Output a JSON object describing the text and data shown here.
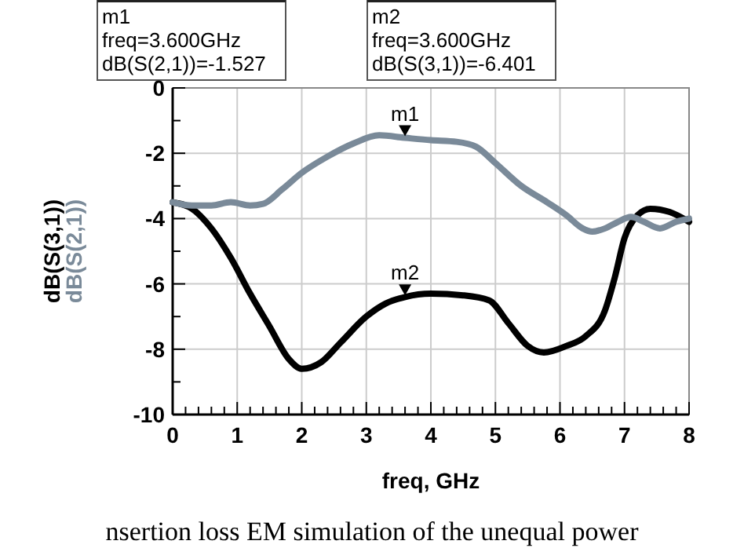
{
  "chart_data": {
    "type": "line",
    "xlabel": "freq, GHz",
    "x": [
      0,
      0.3,
      0.6,
      0.9,
      1.2,
      1.5,
      1.8,
      2.0,
      2.3,
      2.6,
      3.0,
      3.3,
      3.6,
      4.0,
      4.5,
      4.9,
      5.2,
      5.5,
      5.75,
      6.1,
      6.4,
      6.7,
      6.85,
      7.0,
      7.2,
      7.4,
      7.7,
      8.0
    ],
    "series": [
      {
        "name": "dB(S(3,1))",
        "color": "#000000",
        "values": [
          -3.5,
          -3.7,
          -4.3,
          -5.2,
          -6.3,
          -7.3,
          -8.3,
          -8.6,
          -8.4,
          -7.8,
          -7.0,
          -6.6,
          -6.401,
          -6.3,
          -6.35,
          -6.5,
          -7.2,
          -7.9,
          -8.1,
          -7.9,
          -7.6,
          -6.8,
          -5.8,
          -4.6,
          -3.9,
          -3.7,
          -3.8,
          -4.1
        ]
      },
      {
        "name": "dB(S(2,1))",
        "color": "#7a8a99",
        "x": [
          0,
          0.3,
          0.6,
          0.9,
          1.2,
          1.4,
          1.7,
          2.0,
          2.4,
          2.8,
          3.2,
          3.6,
          4.0,
          4.4,
          4.7,
          5.0,
          5.4,
          5.8,
          6.1,
          6.35,
          6.5,
          6.7,
          6.9,
          7.1,
          7.3,
          7.55,
          7.8,
          8.0
        ],
        "values": [
          -3.5,
          -3.6,
          -3.6,
          -3.5,
          -3.6,
          -3.55,
          -3.1,
          -2.6,
          -2.1,
          -1.7,
          -1.45,
          -1.527,
          -1.6,
          -1.65,
          -1.8,
          -2.3,
          -3.0,
          -3.5,
          -3.9,
          -4.3,
          -4.4,
          -4.3,
          -4.1,
          -3.95,
          -4.1,
          -4.3,
          -4.1,
          -4.0
        ]
      }
    ],
    "xlim": [
      0,
      8
    ],
    "xticks": [
      0,
      {
        "value": 0.2,
        "label": null
      },
      {
        "value": 0.4,
        "label": null
      },
      {
        "value": 0.6,
        "label": null
      },
      {
        "value": 0.8,
        "label": null
      },
      1,
      {
        "value": 1.2,
        "label": null
      },
      {
        "value": 1.4,
        "label": null
      },
      {
        "value": 1.6,
        "label": null
      },
      {
        "value": 1.8,
        "label": null
      },
      2,
      {
        "value": 2.2,
        "label": null
      },
      {
        "value": 2.4,
        "label": null
      },
      {
        "value": 2.6,
        "label": null
      },
      {
        "value": 2.8,
        "label": null
      },
      3,
      {
        "value": 3.2,
        "label": null
      },
      {
        "value": 3.4,
        "label": null
      },
      {
        "value": 3.6,
        "label": null
      },
      {
        "value": 3.8,
        "label": null
      },
      4,
      {
        "value": 4.2,
        "label": null
      },
      {
        "value": 4.4,
        "label": null
      },
      {
        "value": 4.6,
        "label": null
      },
      {
        "value": 4.8,
        "label": null
      },
      5,
      {
        "value": 5.2,
        "label": null
      },
      {
        "value": 5.4,
        "label": null
      },
      {
        "value": 5.6,
        "label": null
      },
      {
        "value": 5.8,
        "label": null
      },
      6,
      {
        "value": 6.2,
        "label": null
      },
      {
        "value": 6.4,
        "label": null
      },
      {
        "value": 6.6,
        "label": null
      },
      {
        "value": 6.8,
        "label": null
      },
      7,
      {
        "value": 7.2,
        "label": null
      },
      {
        "value": 7.4,
        "label": null
      },
      {
        "value": 7.6,
        "label": null
      },
      {
        "value": 7.8,
        "label": null
      },
      8
    ],
    "ylim": [
      -10,
      0
    ],
    "yticks": [
      -10,
      {
        "value": -9,
        "label": null
      },
      -8,
      {
        "value": -7,
        "label": null
      },
      -6,
      {
        "value": -5,
        "label": null
      },
      -4,
      {
        "value": -3,
        "label": null
      },
      -2,
      {
        "value": -1,
        "label": null
      },
      0
    ],
    "grid": true,
    "legend": "left",
    "annotations": [
      {
        "text": "m1",
        "x": 3.6,
        "y": -1.527
      },
      {
        "text": "m2",
        "x": 3.6,
        "y": -6.401
      },
      "m1\nfreq=3.600GHz\ndB(S(2,1))=-1.527",
      "m2\nfreq=3.600GHz\ndB(S(3,1))=-6.401",
      "nsertion loss EM simulation of the unequal power"
    ]
  }
}
